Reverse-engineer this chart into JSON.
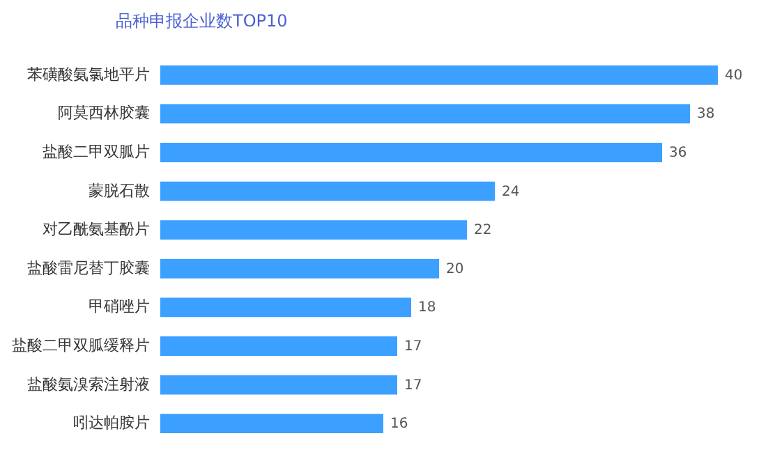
{
  "chart_data": {
    "type": "bar",
    "orientation": "horizontal",
    "title": "品种申报企业数TOP10",
    "categories": [
      "苯磺酸氨氯地平片",
      "阿莫西林胶囊",
      "盐酸二甲双胍片",
      "蒙脱石散",
      "对乙酰氨基酚片",
      "盐酸雷尼替丁胶囊",
      "甲硝唑片",
      "盐酸二甲双胍缓释片",
      "盐酸氨溴索注射液",
      "吲达帕胺片"
    ],
    "values": [
      40,
      38,
      36,
      24,
      22,
      20,
      18,
      17,
      17,
      16
    ],
    "color": "#3ba0ff",
    "data_labels": true
  }
}
